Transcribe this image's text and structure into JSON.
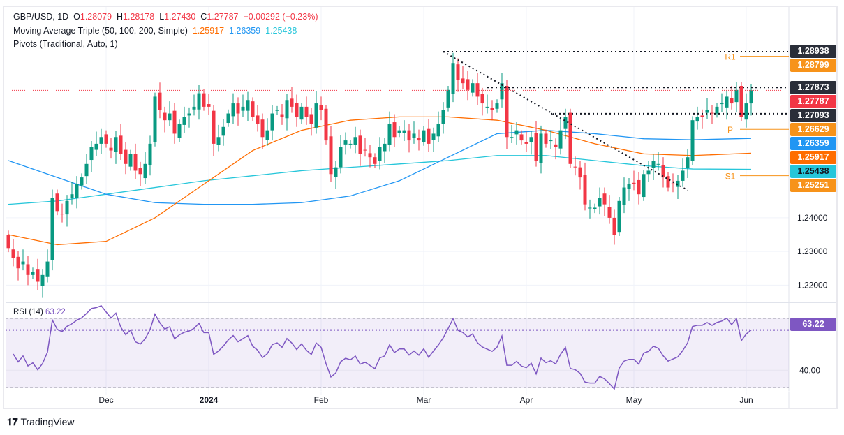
{
  "header": {
    "symbol": "GBP/USD, 1D",
    "o_label": "O",
    "o": "1.28079",
    "h_label": "H",
    "h": "1.28178",
    "l_label": "L",
    "l": "1.27430",
    "c_label": "C",
    "c": "1.27787",
    "change": "−0.00292 (−0.23%)"
  },
  "ma_legend": {
    "title": "Moving Average Triple (50, 100, 200, Simple)",
    "ma50": "1.25917",
    "ma100": "1.26359",
    "ma200": "1.25438"
  },
  "pivots_legend": "Pivots (Traditional, Auto, 1)",
  "rsi_legend": {
    "title": "RSI (14)",
    "value": "63.22"
  },
  "price_labels": [
    {
      "text": "1.28938",
      "color": "#2a2e39"
    },
    {
      "text": "1.28799",
      "color": "#f7931a"
    },
    {
      "text": "1.27873",
      "color": "#2a2e39"
    },
    {
      "text": "1.27787",
      "color": "#f23645"
    },
    {
      "text": "1.27093",
      "color": "#2a2e39"
    },
    {
      "text": "1.26629",
      "color": "#f7931a"
    },
    {
      "text": "1.26359",
      "color": "#2196f3"
    },
    {
      "text": "1.25917",
      "color": "#ff6d00"
    },
    {
      "text": "1.25438",
      "color": "#26c6da"
    },
    {
      "text": "1.25251",
      "color": "#f7931a"
    }
  ],
  "pivot_names": {
    "r1": "R1",
    "p": "P",
    "s1": "S1"
  },
  "brand": "TradingView",
  "colors": {
    "up": "#089981",
    "down": "#f23645",
    "ma50": "#ff6d00",
    "ma100": "#2196f3",
    "ma200": "#26c6da",
    "pivot": "#f7931a",
    "rsi": "#7e57c2"
  },
  "chart_data": {
    "type": "candlestick",
    "title": "GBP/USD, 1D",
    "y_ticks": [
      "1.24000",
      "1.23000",
      "1.22000"
    ],
    "y_tick_values": [
      1.24,
      1.23,
      1.22
    ],
    "x_ticks": [
      "Dec",
      "2024",
      "Feb",
      "Mar",
      "Apr",
      "May",
      "Jun"
    ],
    "x_tick_bars": [
      20,
      41,
      64,
      85,
      106,
      128,
      151
    ],
    "ylim": [
      1.2155,
      1.2985
    ],
    "closes": [
      1.231,
      1.228,
      1.225,
      1.227,
      1.223,
      1.224,
      1.221,
      1.223,
      1.227,
      1.246,
      1.242,
      1.241,
      1.245,
      1.247,
      1.25,
      1.252,
      1.256,
      1.261,
      1.262,
      1.264,
      1.262,
      1.26,
      1.264,
      1.259,
      1.256,
      1.259,
      1.254,
      1.253,
      1.256,
      1.262,
      1.276,
      1.272,
      1.269,
      1.271,
      1.265,
      1.268,
      1.27,
      1.271,
      1.273,
      1.277,
      1.273,
      1.273,
      1.262,
      1.264,
      1.267,
      1.271,
      1.274,
      1.271,
      1.273,
      1.275,
      1.27,
      1.268,
      1.264,
      1.266,
      1.271,
      1.272,
      1.27,
      1.275,
      1.273,
      1.27,
      1.273,
      1.27,
      1.268,
      1.274,
      1.272,
      1.263,
      1.253,
      1.255,
      1.261,
      1.263,
      1.262,
      1.264,
      1.259,
      1.26,
      1.258,
      1.256,
      1.261,
      1.262,
      1.268,
      1.264,
      1.266,
      1.266,
      1.263,
      1.265,
      1.263,
      1.266,
      1.262,
      1.265,
      1.268,
      1.272,
      1.278,
      1.286,
      1.281,
      1.28,
      1.278,
      1.28,
      1.276,
      1.274,
      1.273,
      1.272,
      1.274,
      1.28,
      1.264,
      1.264,
      1.266,
      1.263,
      1.262,
      1.264,
      1.257,
      1.265,
      1.262,
      1.263,
      1.261,
      1.266,
      1.27,
      1.256,
      1.255,
      1.252,
      1.244,
      1.243,
      1.243,
      1.246,
      1.244,
      1.24,
      1.235,
      1.245,
      1.249,
      1.25,
      1.25,
      1.247,
      1.253,
      1.254,
      1.257,
      1.256,
      1.252,
      1.249,
      1.25,
      1.251,
      1.254,
      1.258,
      1.269,
      1.27,
      1.27,
      1.272,
      1.271,
      1.273,
      1.274,
      1.276,
      1.274,
      1.278,
      1.27,
      1.274,
      1.2779
    ],
    "ma_bars": [
      0,
      10,
      20,
      30,
      40,
      50,
      60,
      70,
      80,
      90,
      100,
      110,
      120,
      130,
      140,
      152
    ],
    "ma50": [
      1.235,
      1.232,
      1.233,
      1.24,
      1.25,
      1.26,
      1.266,
      1.269,
      1.27,
      1.27,
      1.269,
      1.266,
      1.262,
      1.259,
      1.2585,
      1.2592
    ],
    "ma100": [
      1.257,
      1.252,
      1.247,
      1.2445,
      1.244,
      1.244,
      1.2445,
      1.2465,
      1.251,
      1.258,
      1.265,
      1.266,
      1.265,
      1.2635,
      1.2632,
      1.2636
    ],
    "ma200": [
      1.244,
      1.245,
      1.247,
      1.249,
      1.251,
      1.2525,
      1.254,
      1.255,
      1.256,
      1.257,
      1.2585,
      1.2585,
      1.257,
      1.2555,
      1.2545,
      1.2544
    ],
    "levels": {
      "high": 1.28938,
      "resistance": 1.27873,
      "support": 1.27093,
      "last_close": 1.27787,
      "r1": 1.28799,
      "p": 1.26629,
      "s1": 1.25251
    },
    "trendline": {
      "from": [
        89,
        1.28938
      ],
      "to": [
        139,
        1.2482
      ]
    },
    "rsi": {
      "period": 14,
      "ylim": [
        26,
        78
      ],
      "bands": [
        70,
        50,
        30
      ],
      "y_tick": "40.00",
      "y_tick_value": 40,
      "last": 63.22
    }
  }
}
